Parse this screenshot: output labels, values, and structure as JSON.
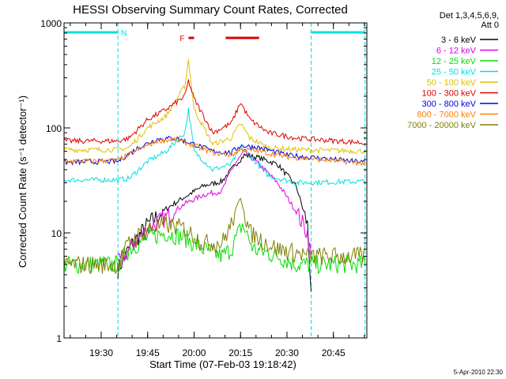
{
  "chart_data": {
    "type": "line",
    "title": "HESSI Observing Summary Count Rates, Corrected",
    "xlabel": "Start Time (07-Feb-03 19:18:42)",
    "ylabel": "Corrected Count Rate (s⁻¹ detector⁻¹)",
    "yscale": "log",
    "ylim": [
      1,
      1000
    ],
    "xlim_minutes": [
      19.3,
      20.93
    ],
    "x_ticks": [
      {
        "t": 19.5,
        "label": "19:30"
      },
      {
        "t": 19.75,
        "label": "19:45"
      },
      {
        "t": 20.0,
        "label": "20:00"
      },
      {
        "t": 20.25,
        "label": "20:15"
      },
      {
        "t": 20.5,
        "label": "20:30"
      },
      {
        "t": 20.75,
        "label": "20:45"
      }
    ],
    "y_ticks": [
      {
        "v": 1,
        "label": "1"
      },
      {
        "v": 10,
        "label": "10"
      },
      {
        "v": 100,
        "label": "100"
      },
      {
        "v": 1000,
        "label": "1000"
      }
    ],
    "legend_header": [
      "Det 1,3,4,5,6,9,",
      "Att 0"
    ],
    "footer_date": "5-Apr-2010 22:30",
    "annotations": {
      "night_label": "N",
      "night_bars": [
        {
          "t0": 19.3,
          "t1": 19.59
        },
        {
          "t0": 20.63,
          "t1": 20.92
        }
      ],
      "night_lines_t": [
        19.59,
        20.63,
        20.92
      ],
      "flare_label": "F",
      "flare_bars": [
        {
          "t0": 19.97,
          "t1": 20.0
        },
        {
          "t0": 20.17,
          "t1": 20.35
        }
      ]
    },
    "series": [
      {
        "name": "3 - 6 keV",
        "color": "#000000",
        "points": [
          [
            19.59,
            4.5
          ],
          [
            19.65,
            7
          ],
          [
            19.75,
            12
          ],
          [
            19.85,
            17
          ],
          [
            19.95,
            22
          ],
          [
            20.05,
            28
          ],
          [
            20.15,
            31
          ],
          [
            20.2,
            40
          ],
          [
            20.27,
            55
          ],
          [
            20.35,
            52
          ],
          [
            20.45,
            45
          ],
          [
            20.55,
            28
          ],
          [
            20.61,
            12
          ],
          [
            20.63,
            3
          ]
        ]
      },
      {
        "name": "6 - 12 keV",
        "color": "#e000e0",
        "points": [
          [
            19.59,
            5
          ],
          [
            19.65,
            7
          ],
          [
            19.75,
            11
          ],
          [
            19.85,
            14
          ],
          [
            19.95,
            19
          ],
          [
            20.05,
            23
          ],
          [
            20.15,
            25
          ],
          [
            20.2,
            40
          ],
          [
            20.27,
            60
          ],
          [
            20.35,
            45
          ],
          [
            20.45,
            30
          ],
          [
            20.55,
            16
          ],
          [
            20.61,
            10
          ],
          [
            20.63,
            6
          ]
        ]
      },
      {
        "name": "12 - 25 keV",
        "color": "#00e000",
        "points": [
          [
            19.3,
            5
          ],
          [
            19.59,
            5
          ],
          [
            19.65,
            7
          ],
          [
            19.75,
            9
          ],
          [
            19.85,
            10
          ],
          [
            19.95,
            9
          ],
          [
            20.05,
            7
          ],
          [
            20.15,
            6
          ],
          [
            20.2,
            7
          ],
          [
            20.26,
            12
          ],
          [
            20.32,
            7
          ],
          [
            20.45,
            6
          ],
          [
            20.55,
            5
          ],
          [
            20.63,
            5
          ],
          [
            20.92,
            5
          ]
        ]
      },
      {
        "name": "25 - 50 keV",
        "color": "#00e0e0",
        "points": [
          [
            19.3,
            32
          ],
          [
            19.59,
            32
          ],
          [
            19.65,
            33
          ],
          [
            19.75,
            48
          ],
          [
            19.85,
            60
          ],
          [
            19.95,
            90
          ],
          [
            19.97,
            150
          ],
          [
            20.0,
            60
          ],
          [
            20.1,
            40
          ],
          [
            20.2,
            45
          ],
          [
            20.25,
            65
          ],
          [
            20.3,
            55
          ],
          [
            20.4,
            35
          ],
          [
            20.55,
            30
          ],
          [
            20.92,
            31
          ]
        ]
      },
      {
        "name": "50 - 100 keV",
        "color": "#e0c000",
        "points": [
          [
            19.3,
            62
          ],
          [
            19.59,
            62
          ],
          [
            19.65,
            65
          ],
          [
            19.75,
            100
          ],
          [
            19.85,
            130
          ],
          [
            19.95,
            250
          ],
          [
            19.97,
            450
          ],
          [
            20.0,
            150
          ],
          [
            20.1,
            70
          ],
          [
            20.2,
            80
          ],
          [
            20.25,
            110
          ],
          [
            20.3,
            80
          ],
          [
            20.4,
            65
          ],
          [
            20.55,
            62
          ],
          [
            20.92,
            60
          ]
        ]
      },
      {
        "name": "100 - 300 keV",
        "color": "#e00000",
        "points": [
          [
            19.3,
            75
          ],
          [
            19.59,
            75
          ],
          [
            19.65,
            80
          ],
          [
            19.75,
            120
          ],
          [
            19.85,
            150
          ],
          [
            19.95,
            200
          ],
          [
            19.97,
            280
          ],
          [
            20.0,
            190
          ],
          [
            20.1,
            90
          ],
          [
            20.2,
            110
          ],
          [
            20.25,
            175
          ],
          [
            20.3,
            120
          ],
          [
            20.4,
            90
          ],
          [
            20.55,
            80
          ],
          [
            20.92,
            72
          ]
        ]
      },
      {
        "name": "300 - 800 keV",
        "color": "#0000e0",
        "points": [
          [
            19.3,
            47
          ],
          [
            19.59,
            48
          ],
          [
            19.7,
            65
          ],
          [
            19.8,
            78
          ],
          [
            19.9,
            80
          ],
          [
            20.0,
            70
          ],
          [
            20.1,
            60
          ],
          [
            20.2,
            58
          ],
          [
            20.25,
            68
          ],
          [
            20.35,
            65
          ],
          [
            20.5,
            55
          ],
          [
            20.92,
            47
          ]
        ]
      },
      {
        "name": "800 - 7000 keV",
        "color": "#ff8000",
        "points": [
          [
            19.3,
            48
          ],
          [
            19.59,
            49
          ],
          [
            19.7,
            62
          ],
          [
            19.8,
            75
          ],
          [
            19.9,
            78
          ],
          [
            20.0,
            68
          ],
          [
            20.1,
            58
          ],
          [
            20.2,
            55
          ],
          [
            20.25,
            62
          ],
          [
            20.35,
            60
          ],
          [
            20.5,
            53
          ],
          [
            20.92,
            46
          ]
        ]
      },
      {
        "name": "7000 - 20000 keV",
        "color": "#808000",
        "points": [
          [
            19.3,
            5
          ],
          [
            19.59,
            5
          ],
          [
            19.65,
            8
          ],
          [
            19.75,
            11
          ],
          [
            19.85,
            12
          ],
          [
            19.95,
            11
          ],
          [
            20.05,
            8
          ],
          [
            20.15,
            8
          ],
          [
            20.2,
            12
          ],
          [
            20.25,
            22
          ],
          [
            20.3,
            10
          ],
          [
            20.45,
            7
          ],
          [
            20.63,
            6
          ],
          [
            20.92,
            6
          ]
        ]
      }
    ]
  }
}
